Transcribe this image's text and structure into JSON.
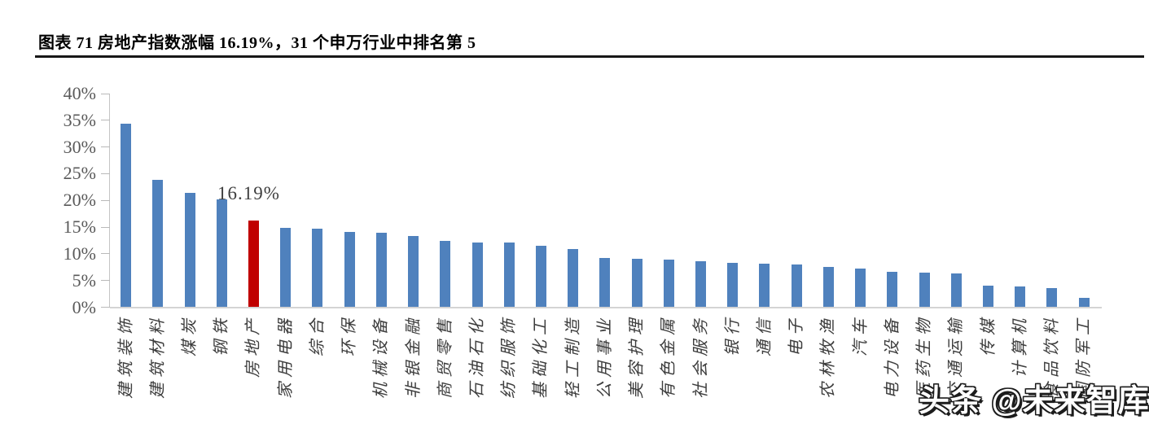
{
  "figure": {
    "title": "图表 71 房地产指数涨幅 16.19%，31 个申万行业中排名第 5"
  },
  "chart_data": {
    "type": "bar",
    "title": "图表 71 房地产指数涨幅 16.19%，31 个申万行业中排名第 5",
    "categories": [
      "建筑装饰",
      "建筑材料",
      "煤炭",
      "钢铁",
      "房地产",
      "家用电器",
      "综合",
      "环保",
      "机械设备",
      "非银金融",
      "商贸零售",
      "石油石化",
      "纺织服饰",
      "基础化工",
      "轻工制造",
      "公用事业",
      "美容护理",
      "有色金属",
      "社会服务",
      "银行",
      "通信",
      "电子",
      "农林牧渔",
      "汽车",
      "电力设备",
      "医药生物",
      "交通运输",
      "传媒",
      "计算机",
      "食品饮料",
      "国防军工"
    ],
    "values": [
      34.3,
      23.7,
      21.4,
      20.1,
      16.19,
      14.8,
      14.7,
      14.0,
      13.9,
      13.3,
      12.3,
      12.1,
      12.0,
      11.5,
      10.8,
      9.2,
      9.0,
      8.8,
      8.5,
      8.2,
      8.1,
      7.9,
      7.4,
      7.1,
      6.5,
      6.4,
      6.2,
      3.9,
      3.8,
      3.5,
      1.7
    ],
    "highlight": {
      "index": 4,
      "category": "房地产",
      "label": "16.19%"
    },
    "xlabel": "",
    "ylabel": "",
    "ylim": [
      0,
      40
    ],
    "y_ticks": [
      "40%",
      "35%",
      "30%",
      "25%",
      "20%",
      "15%",
      "10%",
      "5%",
      "0%"
    ],
    "grid": false,
    "legend": null,
    "colors": {
      "bar": "#4F81BD",
      "highlight": "#C00000",
      "axis": "#C4C4C4",
      "tick_text": "#595959",
      "category_text": "#3D3D3D"
    }
  },
  "watermark": {
    "text": "头条 @未来智库"
  }
}
